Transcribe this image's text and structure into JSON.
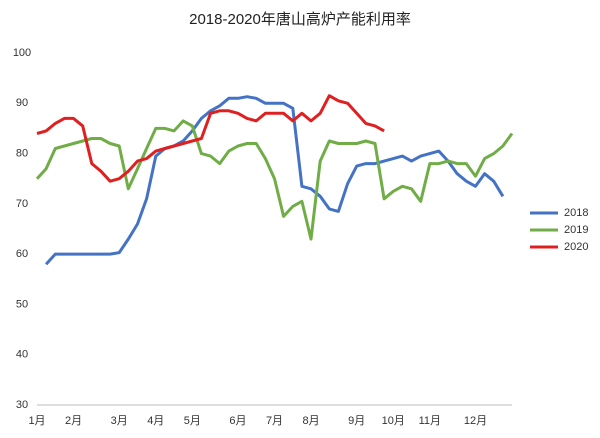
{
  "chart_data": {
    "type": "line",
    "title": "2018-2020年唐山高炉产能利用率",
    "categories": [
      "1月",
      null,
      null,
      null,
      "2月",
      null,
      null,
      null,
      null,
      "3月",
      null,
      null,
      null,
      "4月",
      null,
      null,
      null,
      "5月",
      null,
      null,
      null,
      null,
      "6月",
      null,
      null,
      null,
      "7月",
      null,
      null,
      null,
      "8月",
      null,
      null,
      null,
      null,
      "9月",
      null,
      null,
      null,
      "10月",
      null,
      null,
      null,
      "11月",
      null,
      null,
      null,
      null,
      "12月",
      null,
      null,
      null,
      null
    ],
    "series": [
      {
        "name": "2018",
        "color": "#4472c4",
        "values": [
          null,
          58,
          60,
          60,
          60,
          60,
          60,
          60,
          60,
          60.3,
          63,
          66,
          71,
          79.5,
          81,
          81.5,
          82.5,
          84.5,
          87,
          88.5,
          89.5,
          91,
          91,
          91.3,
          91,
          90,
          90,
          90,
          89,
          73.5,
          73,
          71.5,
          69,
          68.5,
          74,
          77.5,
          78,
          78,
          78.5,
          79,
          79.5,
          78.5,
          79.5,
          80,
          80.5,
          78.5,
          76,
          74.5,
          73.5,
          76,
          74.5,
          71.5,
          null
        ]
      },
      {
        "name": "2019",
        "color": "#70ad47",
        "values": [
          75,
          77,
          81,
          81.5,
          82,
          82.5,
          83,
          83,
          82,
          81.5,
          73,
          77,
          81,
          85,
          85,
          84.5,
          86.5,
          85.5,
          80,
          79.5,
          78,
          80.5,
          81.5,
          82,
          82,
          79,
          75,
          67.5,
          69.5,
          70.5,
          63,
          78.5,
          82.5,
          82,
          82,
          82,
          82.5,
          82,
          71,
          72.5,
          73.5,
          73,
          70.5,
          78,
          78,
          78.5,
          78,
          78,
          75.5,
          79,
          80,
          81.5,
          84
        ]
      },
      {
        "name": "2020",
        "color": "#e02020",
        "values": [
          84,
          84.5,
          86,
          87,
          87,
          85.5,
          78,
          76.5,
          74.5,
          75,
          76.5,
          78.5,
          79,
          80.5,
          81,
          81.5,
          82,
          82.5,
          83,
          88,
          88.5,
          88.5,
          88,
          87,
          86.5,
          88,
          88,
          88,
          86.5,
          88,
          86.5,
          88,
          91.5,
          90.5,
          90,
          88,
          86,
          85.5,
          84.5,
          null,
          null,
          null,
          null,
          null,
          null,
          null,
          null,
          null,
          null,
          null,
          null,
          null,
          null
        ]
      }
    ],
    "ylim": [
      30,
      100
    ],
    "yticks": [
      30,
      40,
      50,
      60,
      70,
      80,
      90,
      100
    ],
    "grid": false,
    "legend": "right"
  }
}
